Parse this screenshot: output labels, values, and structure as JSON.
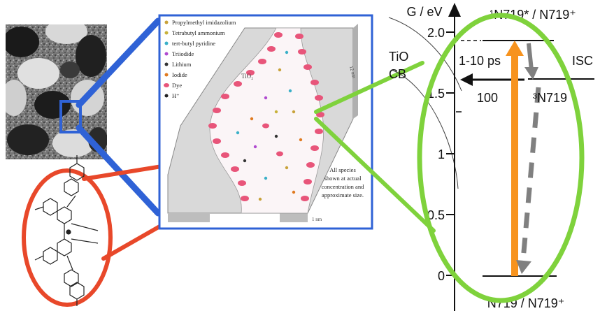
{
  "colors": {
    "zoom_blue": "#2f62d6",
    "zoom_red": "#e8482a",
    "zoom_green": "#7fd23c",
    "orange_arrow": "#f7931e",
    "gray_arrow": "#808080",
    "pink_dye": "#e8557a"
  },
  "pore": {
    "legend": [
      {
        "label": "Propylmethyl imidazolium",
        "color": "#c8a23a"
      },
      {
        "label": "Tetrabutyl ammonium",
        "color": "#c8b23a"
      },
      {
        "label": "tert-butyl pyridine",
        "color": "#3ab0c8"
      },
      {
        "label": "Triiodide",
        "color": "#b04ad0"
      },
      {
        "label": "Lithium",
        "color": "#333333"
      },
      {
        "label": "Iodide",
        "color": "#e07a20"
      },
      {
        "label": "Dye",
        "color": "#e8557a"
      },
      {
        "label": "H⁺",
        "color": "#222222"
      }
    ],
    "tio2_label": "TiO₂",
    "dim_12nm": "12 nm",
    "dim_1nm": "1 nm",
    "note_lines": [
      "All species",
      "shown at actual",
      "concentration and",
      "approximate size."
    ]
  },
  "energy": {
    "axis_label": "G / eV",
    "ticks": [
      "2.0",
      "1.5",
      "1",
      "0.5",
      "0"
    ],
    "top_state": "¹N719* / N719⁺",
    "bottom_state": "N719 / N719⁺",
    "triplet_state": "³N719",
    "tio2_cb_top": "TiO",
    "tio2_cb_bottom": "CB",
    "injection_time": "1-10 ps",
    "isc_label": "ISC",
    "arrow_100": "100"
  }
}
